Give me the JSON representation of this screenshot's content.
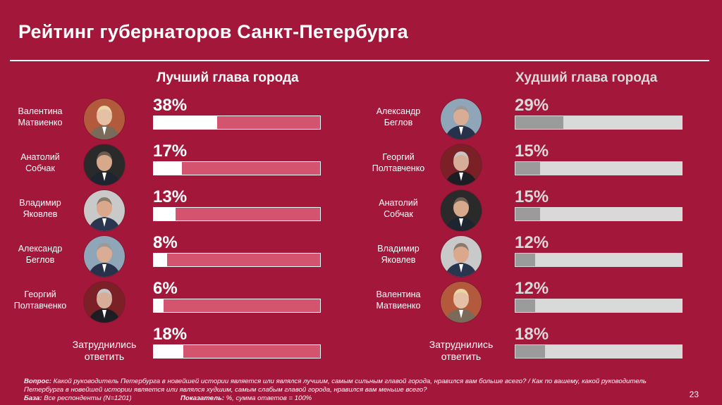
{
  "slide": {
    "title": "Рейтинг губернаторов Санкт-Петербурга",
    "page_number": "23"
  },
  "colors": {
    "background": "#a3183a",
    "best_fill": "#ffffff",
    "best_track": "#d45470",
    "worst_fill": "#9b9b9b",
    "worst_track": "#d9d9d9"
  },
  "footnote": {
    "question_label": "Вопрос:",
    "question_text": "Какой руководитель Петербурга в новейшей истории является или являлся лучшим, самым сильным главой города, нравился вам больше всего? / Как по вашему, какой руководитель Петербурга в новейшей истории является или являлся худшим, самым слабым главой города, нравился вам меньше всего?",
    "base_label": "База:",
    "base_text": "Все респонденты (N=1201)",
    "indicator_label": "Показатель:",
    "indicator_text": "%, сумма ответов = 100%"
  },
  "chart_data": [
    {
      "type": "bar",
      "title": "Лучший глава города",
      "categories": [
        "Валентина Матвиенко",
        "Анатолий Собчак",
        "Владимир Яковлев",
        "Александр Беглов",
        "Георгий Полтавченко",
        "Затруднились ответить"
      ],
      "labels": [
        [
          "Валентина",
          "Матвиенко"
        ],
        [
          "Анатолий",
          "Собчак"
        ],
        [
          "Владимир",
          "Яковлев"
        ],
        [
          "Александр",
          "Беглов"
        ],
        [
          "Георгий",
          "Полтавченко"
        ],
        [
          "Затруднились",
          "ответить"
        ]
      ],
      "avatars": [
        "matvienko",
        "sobchak",
        "yakovlev",
        "beglov",
        "poltavchenko",
        null
      ],
      "values": [
        38,
        17,
        13,
        8,
        6,
        18
      ],
      "value_labels": [
        "38%",
        "17%",
        "13%",
        "8%",
        "6%",
        "18%"
      ],
      "xlim": [
        0,
        100
      ],
      "unit": "%"
    },
    {
      "type": "bar",
      "title": "Худший глава города",
      "categories": [
        "Александр Беглов",
        "Георгий Полтавченко",
        "Анатолий Собчак",
        "Владимир Яковлев",
        "Валентина Матвиенко",
        "Затруднились ответить"
      ],
      "labels": [
        [
          "Александр",
          "Беглов"
        ],
        [
          "Георгий",
          "Полтавченко"
        ],
        [
          "Анатолий",
          "Собчак"
        ],
        [
          "Владимир",
          "Яковлев"
        ],
        [
          "Валентина",
          "Матвиенко"
        ],
        [
          "Затруднились",
          "ответить"
        ]
      ],
      "avatars": [
        "beglov",
        "poltavchenko",
        "sobchak",
        "yakovlev",
        "matvienko",
        null
      ],
      "values": [
        29,
        15,
        15,
        12,
        12,
        18
      ],
      "value_labels": [
        "29%",
        "15%",
        "15%",
        "12%",
        "12%",
        "18%"
      ],
      "xlim": [
        0,
        100
      ],
      "unit": "%"
    }
  ]
}
